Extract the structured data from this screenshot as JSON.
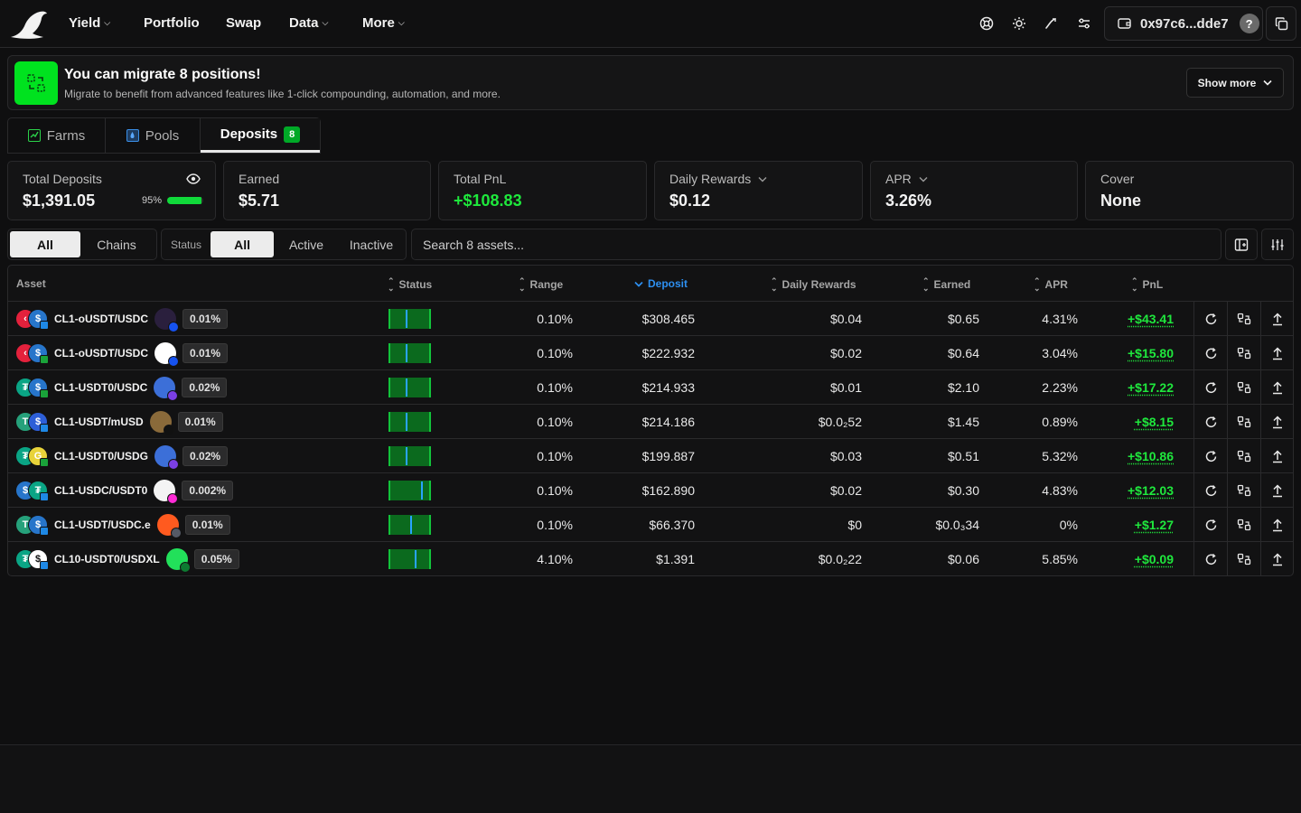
{
  "nav": {
    "items": [
      {
        "label": "Yield",
        "dropdown": true
      },
      {
        "label": "Portfolio",
        "dropdown": false
      },
      {
        "label": "Swap",
        "dropdown": false
      },
      {
        "label": "Data",
        "dropdown": true
      },
      {
        "label": "More",
        "dropdown": true
      }
    ],
    "icons": [
      "support-icon",
      "theme-sun-icon",
      "moon-icon",
      "settings-icon"
    ],
    "wallet_address": "0x97c6...dde7",
    "help_label": "?"
  },
  "banner": {
    "title": "You can migrate 8 positions!",
    "subtitle": "Migrate to benefit from advanced features like 1-click compounding, automation, and more.",
    "show_more_label": "Show more"
  },
  "tabs": [
    {
      "label": "Farms",
      "icon": "farm-icon"
    },
    {
      "label": "Pools",
      "icon": "pool-icon"
    },
    {
      "label": "Deposits",
      "badge": "8",
      "active": true
    }
  ],
  "stats": {
    "total_deposits": {
      "label": "Total Deposits",
      "value": "$1,391.05",
      "progress_label": "95%",
      "progress": 0.95
    },
    "earned": {
      "label": "Earned",
      "value": "$5.71"
    },
    "total_pnl": {
      "label": "Total PnL",
      "value": "+$108.83"
    },
    "daily_rewards": {
      "label": "Daily Rewards",
      "value": "$0.12"
    },
    "apr": {
      "label": "APR",
      "value": "3.26%"
    },
    "cover": {
      "label": "Cover",
      "value": "None"
    }
  },
  "filters": {
    "scope": [
      "All",
      "Chains"
    ],
    "status_label": "Status",
    "status": [
      "All",
      "Active",
      "Inactive"
    ],
    "search_placeholder": "Search 8 assets..."
  },
  "table": {
    "columns": [
      "Asset",
      "Status",
      "Range",
      "Deposit",
      "Daily Rewards",
      "Earned",
      "APR",
      "PnL"
    ],
    "sorted_column": "Deposit",
    "rows": [
      {
        "name": "CL1-oUSDT/USDC",
        "fee": "0.01%",
        "range": "0.10%",
        "deposit": "$308.465",
        "daily": "$0.04",
        "earned": "$0.65",
        "apr": "4.31%",
        "pnl": "+$43.41",
        "tok1": "#e3213c",
        "tok1g": "‹",
        "tok2": "#2775ca",
        "tok2g": "$",
        "chain": "#1e88e5",
        "dex": "#2a1f3d",
        "dexg": "",
        "dexsub": "#1652f0",
        "tick": 0.4
      },
      {
        "name": "CL1-oUSDT/USDC",
        "fee": "0.01%",
        "range": "0.10%",
        "deposit": "$222.932",
        "daily": "$0.02",
        "earned": "$0.64",
        "apr": "3.04%",
        "pnl": "+$15.80",
        "tok1": "#e3213c",
        "tok1g": "‹",
        "tok2": "#2775ca",
        "tok2g": "$",
        "chain": "#1aa33a",
        "dex": "#ffffff",
        "dexg": "",
        "dexsub": "#1652f0",
        "tick": 0.4
      },
      {
        "name": "CL1-USDT0/USDC",
        "fee": "0.02%",
        "range": "0.10%",
        "deposit": "$214.933",
        "daily": "$0.01",
        "earned": "$2.10",
        "apr": "2.23%",
        "pnl": "+$17.22",
        "tok1": "#0aa585",
        "tok1g": "₮",
        "tok2": "#2775ca",
        "tok2g": "$",
        "chain": "#1aa33a",
        "dex": "#3c6fd8",
        "dexg": "",
        "dexsub": "#7b3fe4",
        "tick": 0.4
      },
      {
        "name": "CL1-USDT/mUSD",
        "fee": "0.01%",
        "range": "0.10%",
        "deposit": "$214.186",
        "daily": "$0.0₂52",
        "earned": "$1.45",
        "apr": "0.89%",
        "pnl": "+$8.15",
        "tok1": "#26a17b",
        "tok1g": "T",
        "tok2": "#2d5fd8",
        "tok2g": "$",
        "chain": "#1e88e5",
        "dex": "#8a6a3a",
        "dexg": "",
        "dexsub": "#111111",
        "tick": 0.4
      },
      {
        "name": "CL1-USDT0/USDG",
        "fee": "0.02%",
        "range": "0.10%",
        "deposit": "$199.887",
        "daily": "$0.03",
        "earned": "$0.51",
        "apr": "5.32%",
        "pnl": "+$10.86",
        "tok1": "#0aa585",
        "tok1g": "₮",
        "tok2": "#e8d33a",
        "tok2g": "G",
        "chain": "#1aa33a",
        "dex": "#3c6fd8",
        "dexg": "",
        "dexsub": "#7b3fe4",
        "tick": 0.4
      },
      {
        "name": "CL1-USDC/USDT0",
        "fee": "0.002%",
        "range": "0.10%",
        "deposit": "$162.890",
        "daily": "$0.02",
        "earned": "$0.30",
        "apr": "4.83%",
        "pnl": "+$12.03",
        "tok1": "#2775ca",
        "tok1g": "$",
        "tok2": "#0aa585",
        "tok2g": "₮",
        "chain": "#1e88e5",
        "dex": "#f4f4f4",
        "dexg": "",
        "dexsub": "#ff2bd6",
        "tick": 0.78
      },
      {
        "name": "CL1-USDT/USDC.e",
        "fee": "0.01%",
        "range": "0.10%",
        "deposit": "$66.370",
        "daily": "$0",
        "earned": "$0.0₃34",
        "apr": "0%",
        "pnl": "+$1.27",
        "tok1": "#26a17b",
        "tok1g": "T",
        "tok2": "#2775ca",
        "tok2g": "$",
        "chain": "#1e88e5",
        "dex": "#ff5a1f",
        "dexg": "",
        "dexsub": "#555a66",
        "tick": 0.5
      },
      {
        "name": "CL10-USDT0/USDXL",
        "fee": "0.05%",
        "range": "4.10%",
        "deposit": "$1.391",
        "daily": "$0.0₂22",
        "earned": "$0.06",
        "apr": "5.85%",
        "pnl": "+$0.09",
        "tok1": "#0aa585",
        "tok1g": "₮",
        "tok2": "#ffffff",
        "tok2g": "$",
        "chain": "#1e88e5",
        "dex": "#22e05a",
        "dexg": "",
        "dexsub": "#0d7a31",
        "tick": 0.62
      }
    ]
  },
  "colors": {
    "accent_green": "#00e21f",
    "pnl_green": "#1fe83d",
    "sort_blue": "#2d8ff0",
    "background": "#0f0f10"
  }
}
